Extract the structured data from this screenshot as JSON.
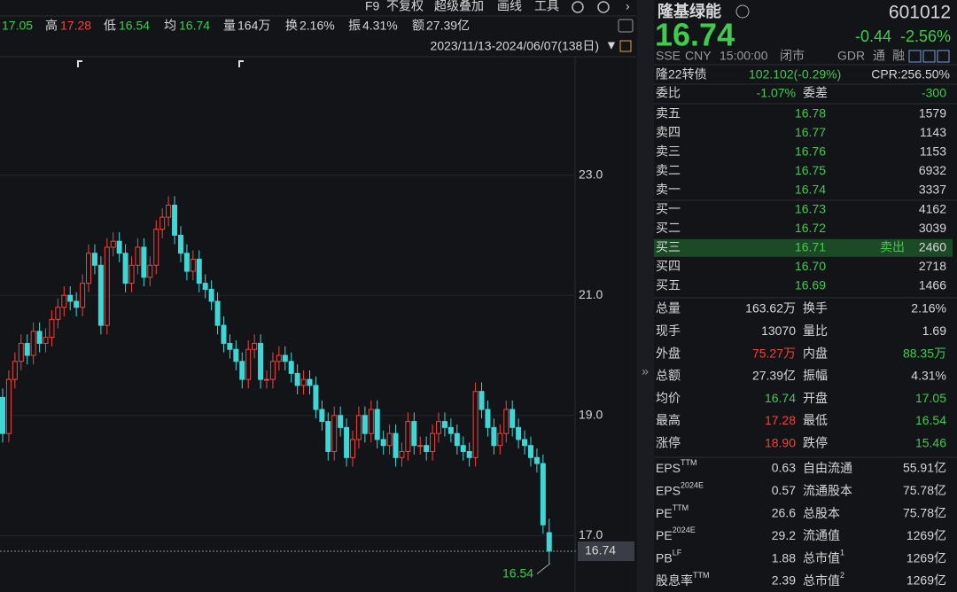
{
  "toolbar": [
    "F9",
    "不复权",
    "超级叠加",
    "画线",
    "工具"
  ],
  "quote_bar": [
    "17.05",
    "高",
    "17.28",
    "低",
    "16.54",
    "均",
    "16.74",
    "量",
    "164万",
    "换",
    "2.16%",
    "振",
    "4.31%",
    "额",
    "27.39亿"
  ],
  "chart_data": {
    "type": "candlestick",
    "date_range": "2023/11/13-2024/06/07(138日)",
    "up_color": "#f0433a",
    "down_color": "#3fd6d6",
    "open": [
      19.3,
      18.7,
      19.6,
      19.9,
      20.2,
      20.0,
      20.4,
      20.2,
      20.3,
      20.6,
      20.8,
      21.0,
      20.9,
      20.8,
      21.2,
      21.7,
      21.5,
      20.5,
      21.8,
      21.9,
      21.7,
      21.2,
      21.5,
      21.8,
      21.3,
      21.5,
      22.1,
      22.3,
      22.5,
      22.0,
      21.7,
      21.4,
      21.6,
      21.2,
      21.1,
      20.9,
      20.5,
      20.2,
      20.1,
      19.9,
      19.6,
      20.1,
      20.2,
      19.6,
      19.6,
      19.9,
      20.0,
      19.9,
      19.7,
      19.5,
      19.6,
      19.5,
      19.1,
      18.9,
      18.4,
      19.0,
      18.8,
      18.3,
      18.6,
      19.0,
      18.7,
      19.1,
      18.6,
      18.5,
      18.7,
      18.3,
      18.4,
      18.9,
      18.5,
      18.5,
      18.4,
      18.7,
      18.9,
      18.8,
      18.7,
      18.5,
      18.4,
      18.3,
      19.4,
      19.1,
      18.8,
      18.5,
      18.7,
      19.1,
      18.8,
      18.6,
      18.5,
      18.3,
      18.2,
      17.05
    ],
    "high": [
      19.45,
      19.75,
      20.05,
      20.35,
      20.35,
      20.55,
      20.55,
      20.45,
      20.75,
      20.95,
      21.15,
      21.15,
      21.05,
      21.35,
      21.85,
      21.85,
      21.65,
      21.95,
      22.05,
      22.05,
      21.85,
      21.65,
      21.95,
      21.95,
      21.65,
      22.25,
      22.45,
      22.65,
      22.65,
      22.15,
      21.85,
      21.75,
      21.75,
      21.35,
      21.25,
      21.05,
      20.65,
      20.35,
      20.25,
      20.05,
      20.25,
      20.35,
      20.35,
      19.75,
      20.05,
      20.15,
      20.15,
      20.05,
      19.85,
      19.75,
      19.75,
      19.65,
      19.25,
      19.05,
      19.15,
      19.15,
      18.95,
      18.75,
      19.15,
      19.15,
      19.25,
      19.25,
      18.75,
      18.85,
      18.85,
      18.55,
      19.05,
      19.05,
      18.65,
      18.65,
      18.85,
      19.05,
      19.05,
      18.95,
      18.85,
      18.65,
      18.55,
      19.55,
      19.55,
      19.25,
      18.95,
      18.85,
      19.25,
      19.25,
      18.95,
      18.75,
      18.65,
      18.45,
      18.35,
      17.28
    ],
    "low": [
      18.55,
      18.55,
      19.45,
      19.75,
      19.85,
      19.85,
      20.05,
      20.05,
      20.15,
      20.45,
      20.65,
      20.75,
      20.65,
      20.65,
      21.05,
      21.35,
      20.35,
      20.35,
      21.65,
      21.55,
      21.05,
      21.05,
      21.35,
      21.15,
      21.15,
      21.35,
      21.95,
      22.15,
      21.85,
      21.55,
      21.25,
      21.25,
      21.05,
      20.95,
      20.75,
      20.35,
      20.05,
      19.95,
      19.75,
      19.45,
      19.45,
      19.95,
      19.45,
      19.45,
      19.45,
      19.75,
      19.75,
      19.55,
      19.35,
      19.35,
      19.35,
      18.95,
      18.75,
      18.25,
      18.25,
      18.65,
      18.15,
      18.15,
      18.45,
      18.55,
      18.55,
      18.45,
      18.35,
      18.35,
      18.15,
      18.15,
      18.25,
      18.35,
      18.35,
      18.25,
      18.25,
      18.55,
      18.65,
      18.55,
      18.35,
      18.25,
      18.15,
      18.15,
      18.95,
      18.65,
      18.35,
      18.35,
      18.55,
      18.65,
      18.45,
      18.35,
      18.15,
      18.05,
      17.03,
      16.54
    ],
    "close": [
      18.7,
      19.6,
      19.9,
      20.2,
      20.0,
      20.4,
      20.2,
      20.3,
      20.6,
      20.8,
      21.0,
      20.9,
      20.8,
      21.2,
      21.7,
      21.5,
      20.5,
      21.8,
      21.9,
      21.7,
      21.2,
      21.5,
      21.8,
      21.3,
      21.5,
      22.1,
      22.3,
      22.5,
      22.0,
      21.7,
      21.4,
      21.6,
      21.2,
      21.1,
      20.9,
      20.5,
      20.2,
      20.1,
      19.9,
      19.6,
      20.1,
      20.2,
      19.6,
      19.6,
      19.9,
      20.0,
      19.9,
      19.7,
      19.5,
      19.6,
      19.5,
      19.1,
      18.9,
      18.4,
      19.0,
      18.8,
      18.3,
      18.6,
      19.0,
      18.7,
      19.1,
      18.6,
      18.5,
      18.7,
      18.3,
      18.4,
      18.9,
      18.5,
      18.5,
      18.4,
      18.7,
      18.9,
      18.8,
      18.7,
      18.5,
      18.4,
      18.3,
      19.4,
      19.1,
      18.8,
      18.5,
      18.7,
      19.1,
      18.8,
      18.6,
      18.5,
      18.3,
      18.2,
      17.18,
      16.74
    ],
    "ylim": [
      16.18,
      25.0
    ],
    "yticks": [
      {
        "value": 23,
        "label": "23.0"
      },
      {
        "value": 21,
        "label": "21.0"
      },
      {
        "value": 19,
        "label": "19.0"
      },
      {
        "value": 17,
        "label": "17.0"
      }
    ],
    "last_price": 16.74,
    "low_marker": 16.54
  },
  "quote": {
    "name": "隆基绿能",
    "code": "601012",
    "price": "16.74",
    "change": "-0.44",
    "change_pct": "-2.56%",
    "info": [
      "SSE",
      "CNY",
      "15:00:00",
      "闭市"
    ],
    "badges": [
      "GDR",
      "通",
      "融"
    ],
    "bond": [
      "隆22转债",
      "102.102(-0.29%)",
      "CPR:256.50%"
    ],
    "ratio": [
      "委比",
      "-1.07%",
      "委差",
      "-300"
    ]
  },
  "order_book": {
    "rows": [
      [
        "卖五",
        "16.78",
        "1579"
      ],
      [
        "卖四",
        "16.77",
        "1143"
      ],
      [
        "卖三",
        "16.76",
        "1153"
      ],
      [
        "卖二",
        "16.75",
        "6932"
      ],
      [
        "卖一",
        "16.74",
        "3337"
      ],
      [
        "买一",
        "16.73",
        "4162"
      ],
      [
        "买二",
        "16.72",
        "3039"
      ],
      [
        "买三",
        "16.71",
        "2460"
      ],
      [
        "买四",
        "16.70",
        "2718"
      ],
      [
        "买五",
        "16.69",
        "1466"
      ]
    ],
    "tag": "卖出"
  },
  "stats": [
    [
      "总量",
      "163.62万",
      "换手",
      "2.16%"
    ],
    [
      "现手",
      "13070",
      "量比",
      "1.69"
    ],
    [
      "外盘",
      "75.27万",
      "内盘",
      "88.35万"
    ],
    [
      "总额",
      "27.39亿",
      "振幅",
      "4.31%"
    ],
    [
      "均价",
      "16.74",
      "开盘",
      "17.05"
    ],
    [
      "最高",
      "17.28",
      "最低",
      "16.54"
    ],
    [
      "涨停",
      "18.90",
      "跌停",
      "15.46"
    ]
  ],
  "fundamentals": [
    [
      {
        "label": "EPS",
        "sup": "TTM"
      },
      "0.63",
      {
        "label": "自由流通"
      },
      "55.91亿"
    ],
    [
      {
        "label": "EPS",
        "sup": "2024E"
      },
      "0.57",
      {
        "label": "流通股本"
      },
      "75.78亿"
    ],
    [
      {
        "label": "PE",
        "sup": "TTM"
      },
      "26.6",
      {
        "label": "总股本"
      },
      "75.78亿"
    ],
    [
      {
        "label": "PE",
        "sup": "2024E"
      },
      "29.2",
      {
        "label": "流通值"
      },
      "1269亿"
    ],
    [
      {
        "label": "PB",
        "sup": "LF"
      },
      "1.88",
      {
        "label": "总市值",
        "sup": "1"
      },
      "1269亿"
    ],
    [
      {
        "label": "股息率",
        "sup": "TTM"
      },
      "2.39",
      {
        "label": "总市值",
        "sup": "2"
      },
      "1269亿"
    ]
  ]
}
